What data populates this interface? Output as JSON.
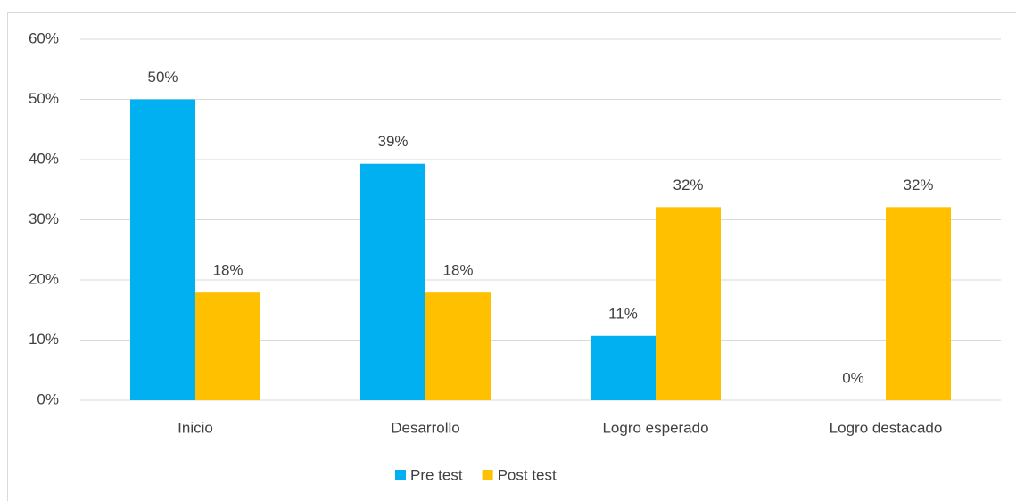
{
  "chart_data": {
    "type": "bar",
    "categories": [
      "Inicio",
      "Desarrollo",
      "Logro esperado",
      "Logro destacado"
    ],
    "series": [
      {
        "name": "Pre test",
        "color": "#00b0f0",
        "values": [
          50,
          39.3,
          10.7,
          0
        ],
        "value_labels": [
          "50%",
          "39%",
          "11%",
          "0%"
        ]
      },
      {
        "name": "Post test",
        "color": "#ffc000",
        "values": [
          17.9,
          17.9,
          32.1,
          32.1
        ],
        "value_labels": [
          "18%",
          "18%",
          "32%",
          "32%"
        ]
      }
    ],
    "ylim": [
      0,
      60
    ],
    "yticks": [
      {
        "value": 0,
        "label": "0%"
      },
      {
        "value": 10,
        "label": "10%"
      },
      {
        "value": 20,
        "label": "20%"
      },
      {
        "value": 30,
        "label": "30%"
      },
      {
        "value": 40,
        "label": "40%"
      },
      {
        "value": 50,
        "label": "50%"
      },
      {
        "value": 60,
        "label": "60%"
      }
    ],
    "grid": true,
    "legend": "bottom"
  }
}
